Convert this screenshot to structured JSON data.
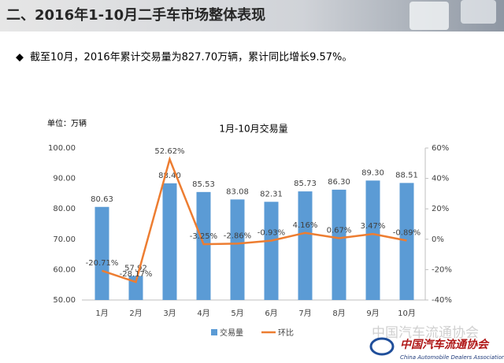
{
  "header": {
    "title": "二、2016年1-10月二手车市场整体表现"
  },
  "bullet": "截至10月，2016年累计交易量为827.70万辆，累计同比增长9.57%。",
  "footer": {
    "watermark": "中国汽车流通协会",
    "logo": "中国汽车流通协会",
    "logo_en": "China Automobile Dealers Association"
  },
  "chart_data": {
    "type": "combo",
    "title": "1月-10月交易量",
    "unit": "单位：万辆",
    "categories": [
      "1月",
      "2月",
      "3月",
      "4月",
      "5月",
      "6月",
      "7月",
      "8月",
      "9月",
      "10月"
    ],
    "series": [
      {
        "name": "交易量",
        "type": "bar",
        "color": "#5b9bd5",
        "values": [
          80.63,
          57.92,
          88.4,
          85.53,
          83.08,
          82.31,
          85.73,
          86.3,
          89.3,
          88.51
        ],
        "value_labels": [
          "80.63",
          "57.92",
          "88.40",
          "85.53",
          "83.08",
          "82.31",
          "85.73",
          "86.30",
          "89.30",
          "88.51"
        ]
      },
      {
        "name": "环比",
        "type": "line",
        "axis": "y2",
        "color": "#ed7d31",
        "values": [
          -20.71,
          -28.17,
          52.62,
          -3.25,
          -2.86,
          -0.93,
          4.16,
          0.67,
          3.47,
          -0.89
        ],
        "value_labels": [
          "-20.71%",
          "-28.17%",
          "52.62%",
          "-3.25%",
          "-2.86%",
          "-0.93%",
          "4.16%",
          "0.67%",
          "3.47%",
          "-0.89%"
        ]
      }
    ],
    "ylim": [
      50,
      100
    ],
    "yticks": [
      {
        "value": 50,
        "label": "50.00"
      },
      {
        "value": 60,
        "label": "60.00"
      },
      {
        "value": 70,
        "label": "70.00"
      },
      {
        "value": 80,
        "label": "80.00"
      },
      {
        "value": 90,
        "label": "90.00"
      },
      {
        "value": 100,
        "label": "100.00"
      }
    ],
    "y2lim": [
      -40,
      60
    ],
    "y2ticks": [
      {
        "value": -40,
        "label": "-40%"
      },
      {
        "value": -20,
        "label": "-20%"
      },
      {
        "value": 0,
        "label": "0%"
      },
      {
        "value": 20,
        "label": "20%"
      },
      {
        "value": 40,
        "label": "40%"
      },
      {
        "value": 60,
        "label": "60%"
      }
    ],
    "grid": false
  }
}
